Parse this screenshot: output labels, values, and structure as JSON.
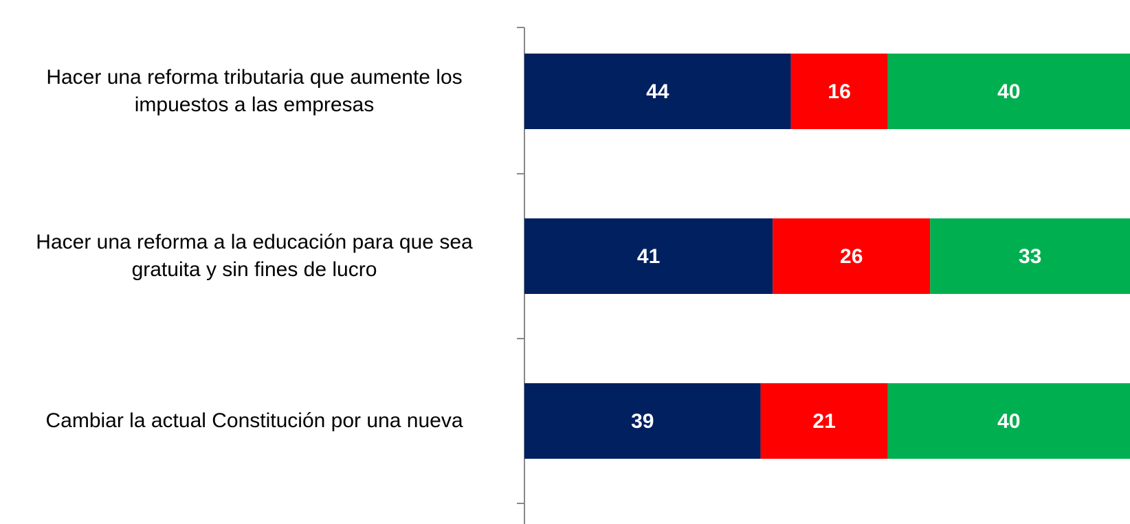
{
  "chart_data": {
    "type": "stacked-bar-horizontal",
    "categories": [
      "Hacer una reforma tributaria que aumente los impuestos a las empresas",
      "Hacer una reforma a la educación para que sea gratuita y sin fines de lucro",
      "Cambiar la actual Constitución por una nueva"
    ],
    "series": [
      {
        "color": "#002060",
        "values": [
          44,
          41,
          39
        ]
      },
      {
        "color": "#ff0000",
        "values": [
          16,
          26,
          21
        ]
      },
      {
        "color": "#00b050",
        "values": [
          40,
          33,
          40
        ]
      }
    ],
    "xlim": [
      0,
      100
    ]
  }
}
